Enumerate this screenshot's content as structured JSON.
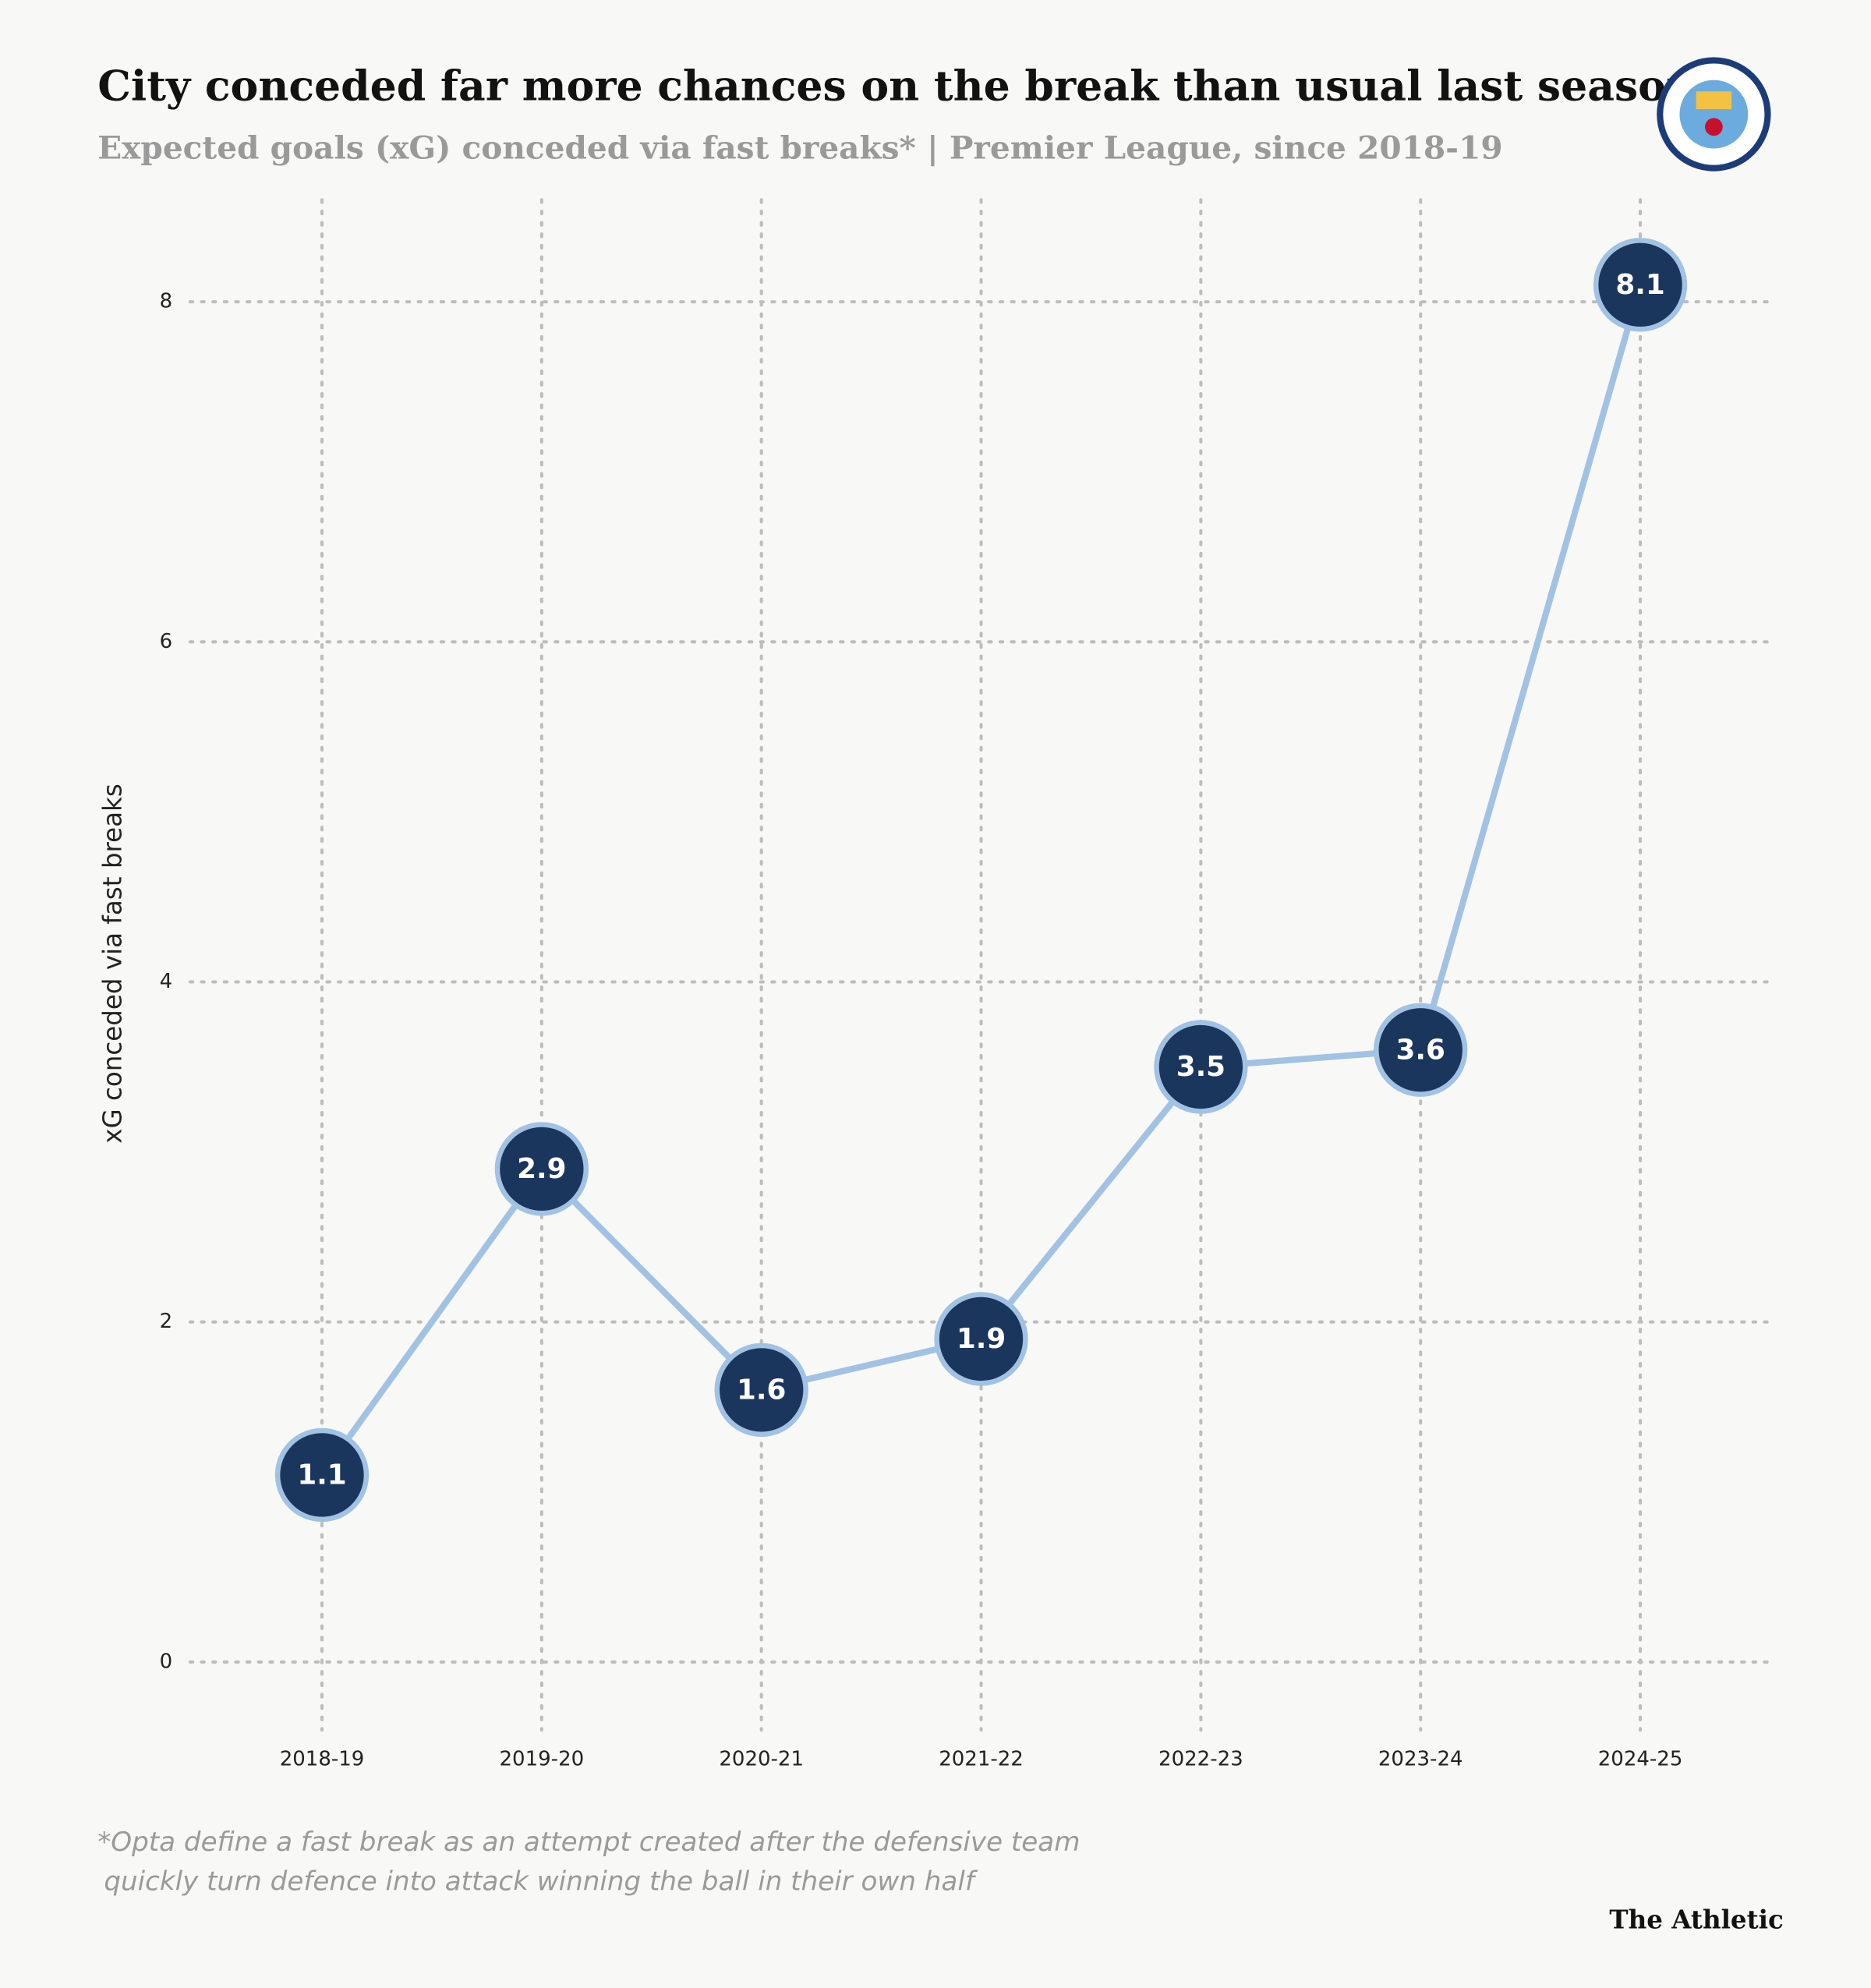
{
  "chart_data": {
    "type": "line",
    "title": "City conceded far more chances on the break than usual last season",
    "subtitle": "Expected goals (xG) conceded via fast breaks* | Premier League, since 2018-19",
    "y_axis_label": "xG conceded via fast breaks",
    "categories": [
      "2018-19",
      "2019-20",
      "2020-21",
      "2021-22",
      "2022-23",
      "2023-24",
      "2024-25"
    ],
    "series": [
      {
        "name": "xG conceded via fast breaks",
        "color": "#a2c2e4",
        "marker_color": "#1b365d",
        "values": [
          1.1,
          2.9,
          1.6,
          1.9,
          3.5,
          3.6,
          8.1
        ]
      }
    ],
    "ylim": [
      -0.4,
      8.6
    ],
    "yticks": [
      0,
      2,
      4,
      6,
      8
    ],
    "grid": true,
    "footnote": [
      "*Opta define a fast break as an attempt created after the defensive team",
      "quickly turn defence into attack winning the ball in their own half"
    ],
    "source": "The Athletic"
  }
}
